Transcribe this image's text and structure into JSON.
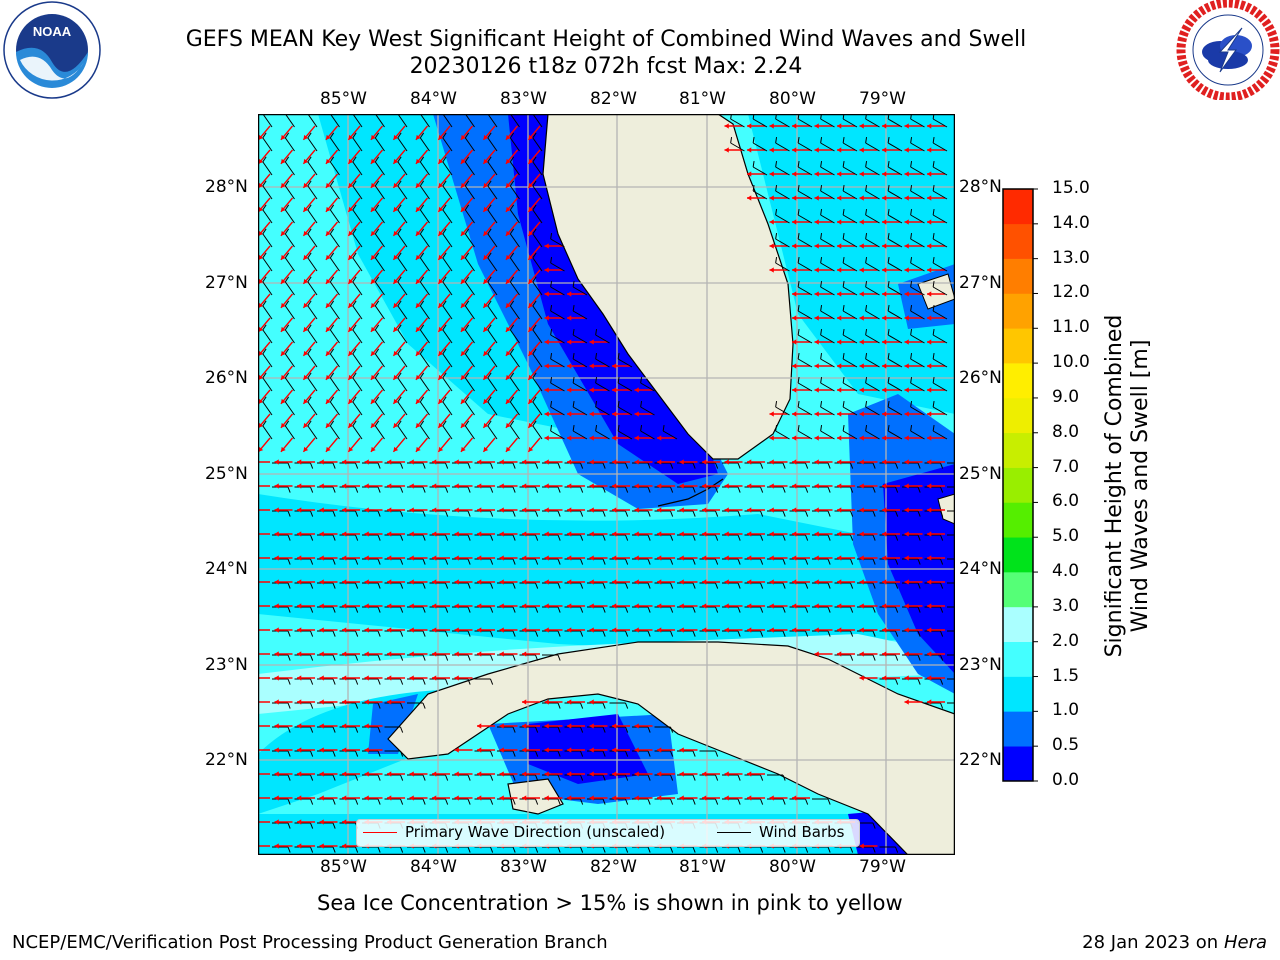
{
  "title": {
    "line1": "GEFS MEAN Key West Significant Height of Combined Wind Waves and Swell",
    "line2": "20230126 t18z 072h fcst   Max: 2.24"
  },
  "logos": {
    "left": {
      "name": "NOAA",
      "ring_text": "NATIONAL OCEANIC AND ATMOSPHERIC ADMINISTRATION · U.S. DEPARTMENT OF COMMERCE"
    },
    "right": {
      "name": "NATIONAL WEATHER SERVICE"
    }
  },
  "map": {
    "lon_labels": [
      "85°W",
      "84°W",
      "83°W",
      "82°W",
      "81°W",
      "80°W",
      "79°W"
    ],
    "lat_labels": [
      "28°N",
      "27°N",
      "26°N",
      "25°N",
      "24°N",
      "23°N",
      "22°N"
    ],
    "lon_range": [
      -86.0,
      -78.25
    ],
    "lat_range": [
      21.0,
      28.75
    ],
    "colors": {
      "land": "#eeeedc",
      "coast": "#000000",
      "grid": "#b4b4b4",
      "wave_arrow": "#ff0000",
      "wind_barb": "#000000"
    }
  },
  "legend": {
    "wave": "Primary Wave Direction (unscaled)",
    "wind": "Wind Barbs"
  },
  "colorbar": {
    "label_line1": "Significant Height of Combined",
    "label_line2": "Wind Waves and Swell [m]",
    "ticks": [
      "0.0",
      "0.5",
      "1.0",
      "1.5",
      "2.0",
      "3.0",
      "4.0",
      "5.0",
      "6.0",
      "7.0",
      "8.0",
      "9.0",
      "10.0",
      "11.0",
      "12.0",
      "13.0",
      "14.0",
      "15.0"
    ],
    "colors": [
      "#0000ff",
      "#0070ff",
      "#00e6ff",
      "#44ffff",
      "#aaffff",
      "#55ff77",
      "#00e31b",
      "#55ee00",
      "#99ee00",
      "#c8ee00",
      "#eeee00",
      "#ffee00",
      "#ffc600",
      "#ffa200",
      "#ff7e00",
      "#ff5100",
      "#ff2a00"
    ]
  },
  "note": "Sea Ice Concentration > 15% is shown in pink to yellow",
  "footer": {
    "left": "NCEP/EMC/Verification Post Processing Product Generation Branch",
    "right_date": "28 Jan 2023 on ",
    "right_host": "Hera"
  },
  "chart_data": {
    "type": "heatmap",
    "title": "GEFS MEAN Key West Significant Height of Combined Wind Waves and Swell",
    "subtitle": "20230126 t18z 072h fcst   Max: 2.24",
    "max": 2.24,
    "units": "m",
    "xlim": [
      -86.0,
      -78.25
    ],
    "ylim": [
      21.0,
      28.75
    ],
    "color_levels": [
      0.0,
      0.5,
      1.0,
      1.5,
      2.0,
      3.0,
      4.0,
      5.0,
      6.0,
      7.0,
      8.0,
      9.0,
      10.0,
      11.0,
      12.0,
      13.0,
      14.0,
      15.0
    ],
    "wave_direction": "from east, turning from northeast in the northern Gulf",
    "legend_placement": "bottom-center"
  }
}
